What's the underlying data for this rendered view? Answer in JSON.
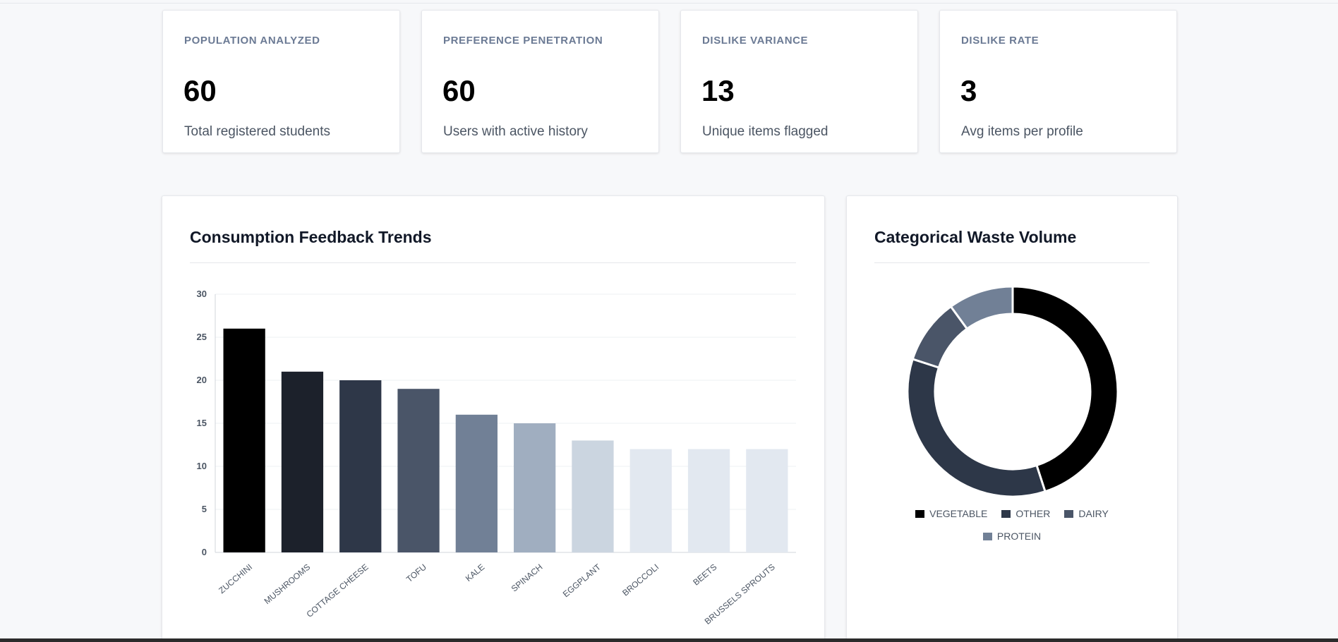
{
  "stats": [
    {
      "label": "POPULATION ANALYZED",
      "value": "60",
      "desc": "Total registered students"
    },
    {
      "label": "PREFERENCE PENETRATION",
      "value": "60",
      "desc": "Users with active history"
    },
    {
      "label": "DISLIKE VARIANCE",
      "value": "13",
      "desc": "Unique items flagged"
    },
    {
      "label": "DISLIKE RATE",
      "value": "3",
      "desc": "Avg items per profile"
    }
  ],
  "bar_panel": {
    "title": "Consumption Feedback Trends"
  },
  "pie_panel": {
    "title": "Categorical Waste Volume"
  },
  "chart_data": [
    {
      "type": "bar",
      "title": "Consumption Feedback Trends",
      "categories": [
        "ZUCCHINI",
        "MUSHROOMS",
        "COTTAGE CHEESE",
        "TOFU",
        "KALE",
        "SPINACH",
        "EGGPLANT",
        "BROCCOLI",
        "BEETS",
        "BRUSSELS SPROUTS"
      ],
      "values": [
        26,
        21,
        20,
        19,
        16,
        15,
        13,
        12,
        12,
        12
      ],
      "colors": [
        "#000000",
        "#1c212b",
        "#2e3748",
        "#4a5568",
        "#718096",
        "#a0aec0",
        "#cbd5e0",
        "#e2e8f0",
        "#e2e8f0",
        "#e2e8f0"
      ],
      "ylim": [
        0,
        30
      ],
      "yticks": [
        0,
        5,
        10,
        15,
        20,
        25,
        30
      ],
      "grid": true,
      "legend": "none"
    },
    {
      "type": "pie",
      "title": "Categorical Waste Volume",
      "labels": [
        "VEGETABLE",
        "OTHER",
        "DAIRY",
        "PROTEIN"
      ],
      "values": [
        45,
        35,
        10,
        10
      ],
      "colors": [
        "#000000",
        "#2d3748",
        "#4a5568",
        "#718096"
      ],
      "donut": true,
      "legend": "bottom"
    }
  ]
}
